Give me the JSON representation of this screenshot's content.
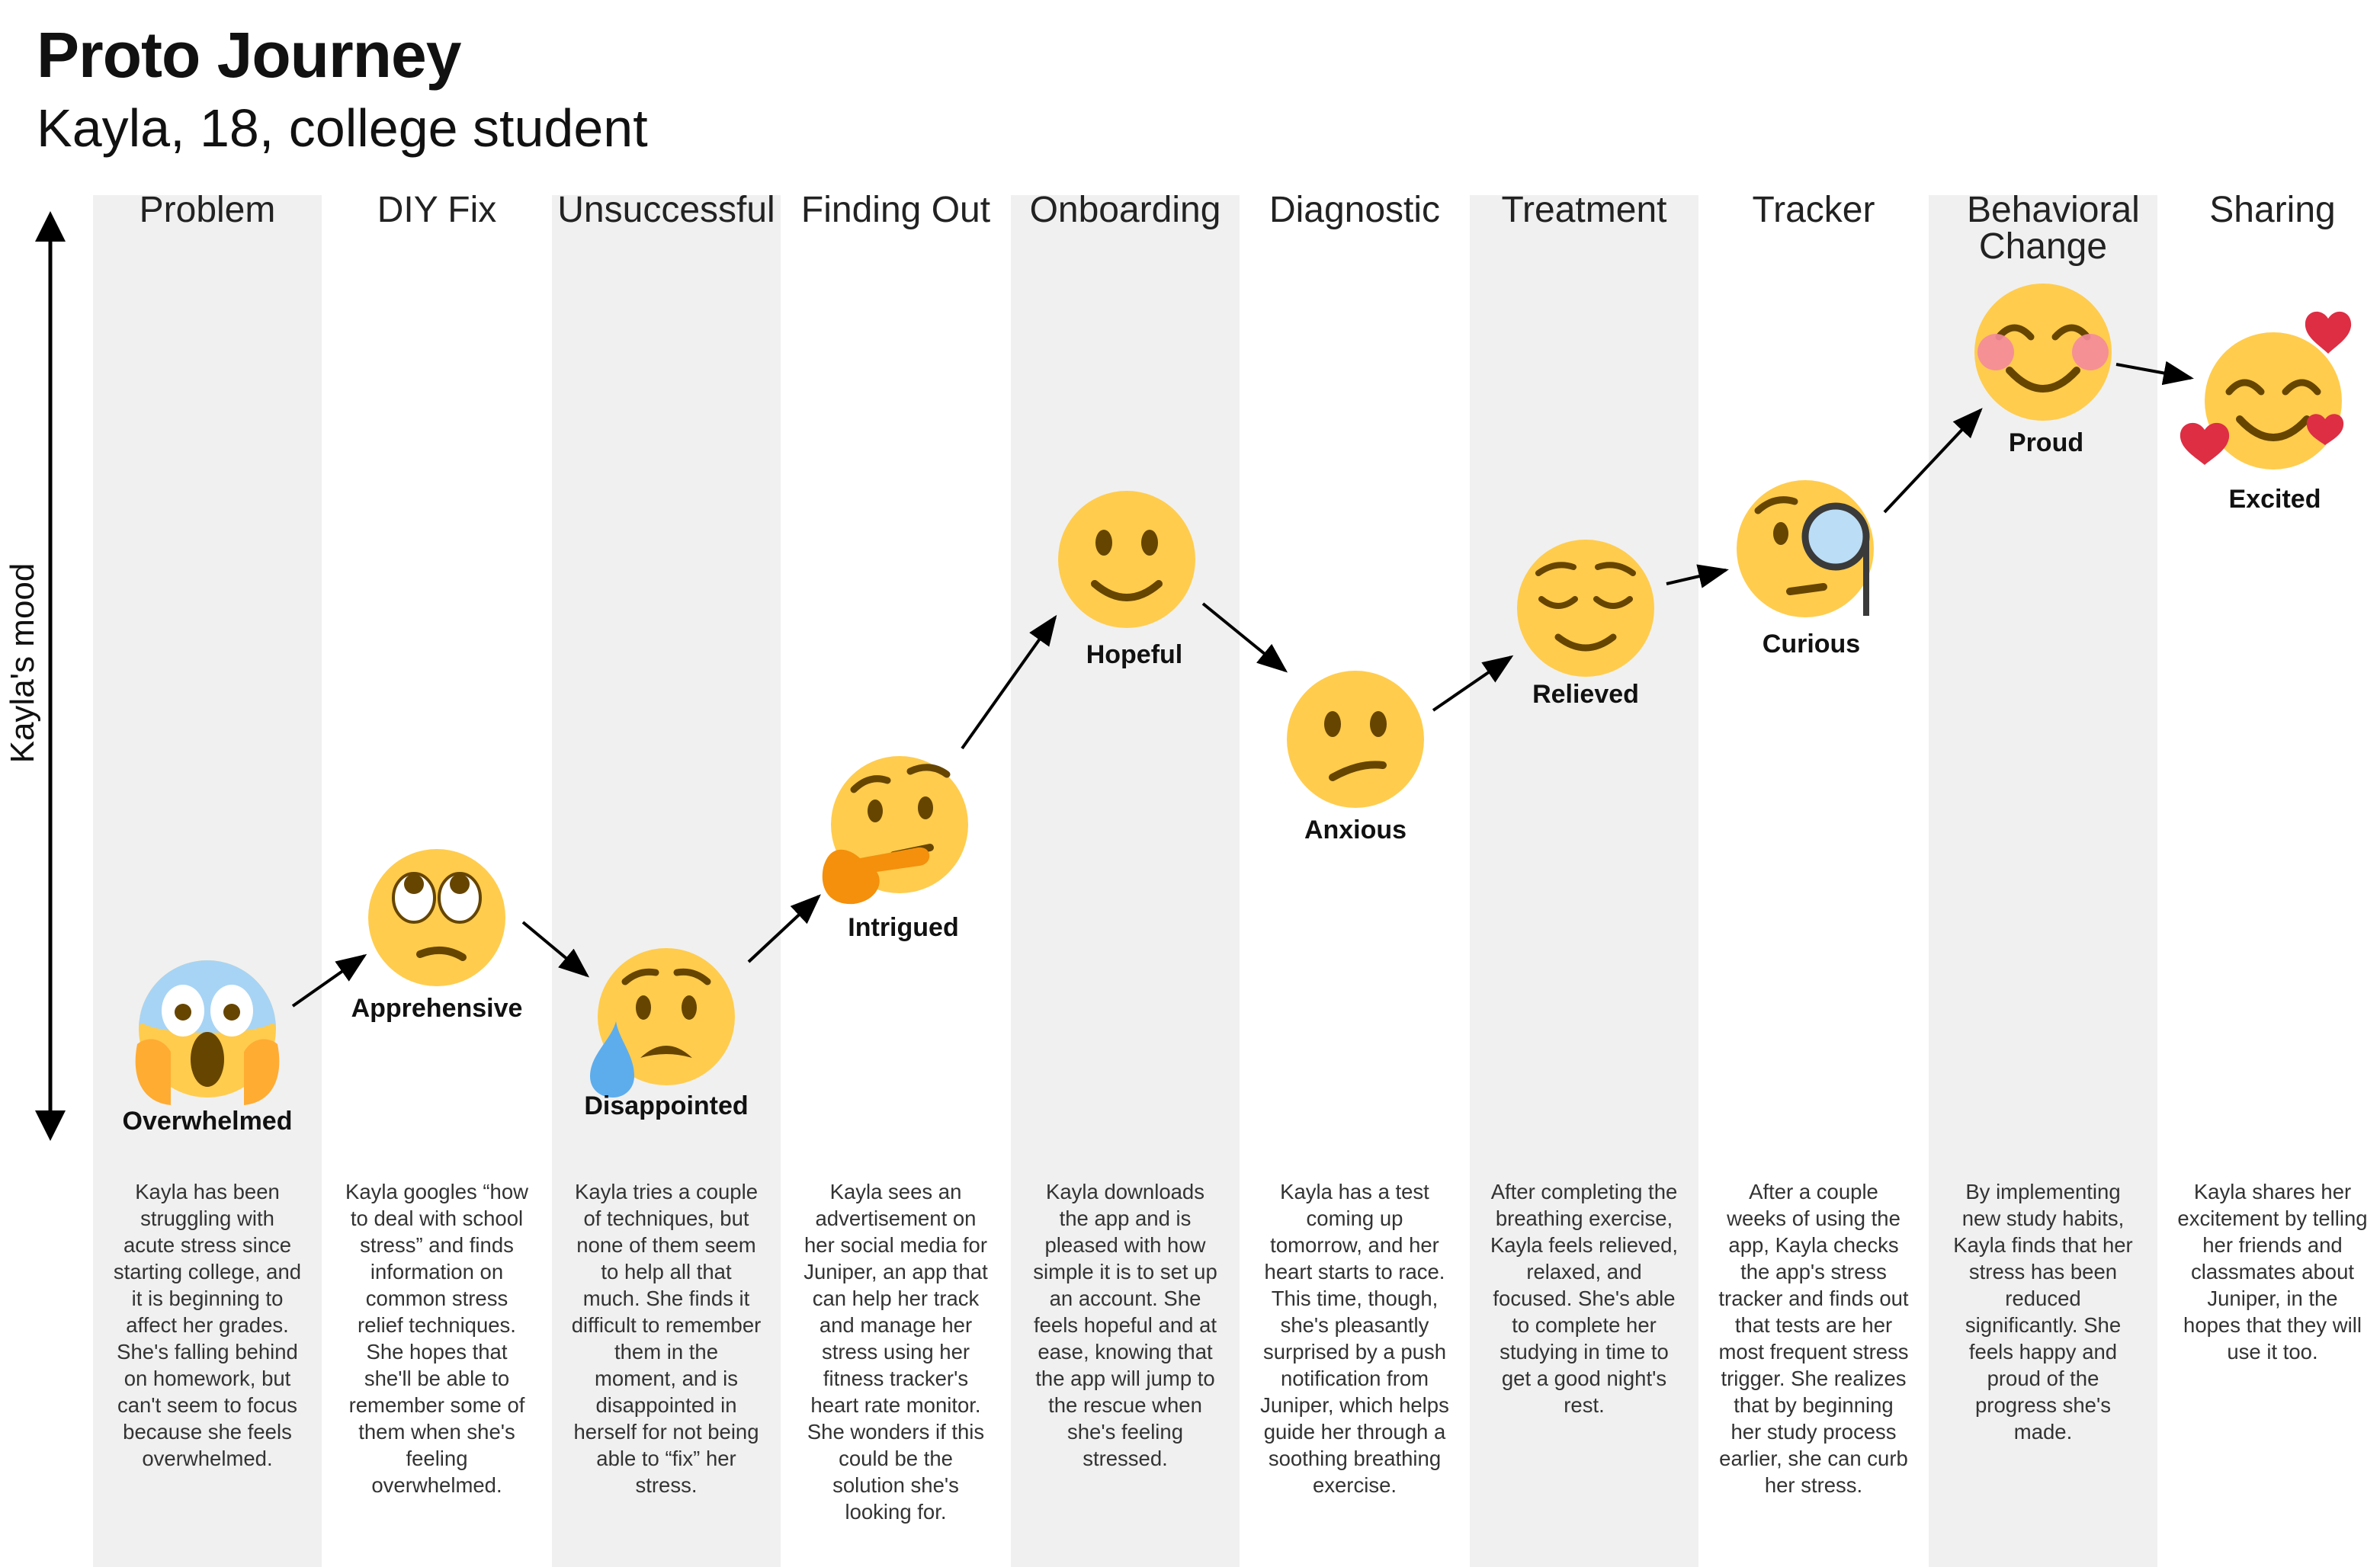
{
  "header": {
    "title": "Proto Journey",
    "subtitle": "Kayla, 18, college student"
  },
  "axis": {
    "label": "Kayla's mood"
  },
  "colors": {
    "column_shade": "#f0f0f0",
    "emoji_face": "#FFCC4D",
    "emoji_features": "#664500",
    "blush": "#F4899C",
    "tear": "#5DADEC",
    "heart": "#DD2E44",
    "hand": "#F4900C",
    "fear_blue": "#A7D4F5",
    "hands_orange": "#FFAC33",
    "arrow": "#000000"
  },
  "stages": [
    {
      "name": "Problem",
      "mood": "Overwhelmed",
      "icon": "screaming-in-fear-icon",
      "description": "Kayla has been struggling with acute stress since starting college, and it is beginning to affect her grades. She's falling behind on homework, but can't seem to focus because she feels overwhelmed."
    },
    {
      "name": "DIY Fix",
      "mood": "Apprehensive",
      "icon": "rolling-eyes-icon",
      "description": "Kayla googles “how to deal with school stress” and finds information on common stress relief techniques. She hopes that she'll be able to remember some of them when she's feeling overwhelmed."
    },
    {
      "name": "Unsuccessful",
      "mood": "Disappointed",
      "icon": "sad-sweat-icon",
      "description": "Kayla tries a couple of techniques, but none of them seem to help all that much. She finds it difficult to remember them in the moment, and is disappointed in herself for not being able to “fix” her stress."
    },
    {
      "name": "Finding Out",
      "mood": "Intrigued",
      "icon": "thinking-face-icon",
      "description": "Kayla sees an advertisement on her social media for Juniper, an app that can help her track and manage her stress using her fitness tracker's heart rate monitor. She wonders if this could be the solution she's looking for."
    },
    {
      "name": "Onboarding",
      "mood": "Hopeful",
      "icon": "slightly-smiling-icon",
      "description": "Kayla downloads the app and is pleased with how simple it is to set up an account. She feels hopeful and at ease, knowing that the app will jump to the rescue when she's feeling stressed."
    },
    {
      "name": "Diagnostic",
      "mood": "Anxious",
      "icon": "confused-face-icon",
      "description": "Kayla has a test coming up tomorrow, and her heart starts to race. This time, though, she's pleasantly surprised by a push notification from Juniper, which helps guide her through a soothing breathing exercise."
    },
    {
      "name": "Treatment",
      "mood": "Relieved",
      "icon": "relieved-face-icon",
      "description": "After completing the breathing exercise, Kayla feels relieved, relaxed, and focused. She's able to complete her studying in time to get a good night's rest."
    },
    {
      "name": "Tracker",
      "mood": "Curious",
      "icon": "monocle-face-icon",
      "description": "After a couple weeks of using the app, Kayla checks the app's stress tracker and finds out that tests are her most frequent stress trigger. She realizes that by beginning her study process earlier, she can curb her stress."
    },
    {
      "name": "Behavioral Change",
      "mood": "Proud",
      "icon": "smiling-blush-icon",
      "description": "By implementing new study habits, Kayla finds that her stress has been reduced significantly. She feels happy and proud of the progress she's made."
    },
    {
      "name": "Sharing",
      "mood": "Excited",
      "icon": "smiling-hearts-icon",
      "description": "Kayla shares her excitement by telling her friends and classmates about Juniper, in the hopes that they will use it too."
    }
  ]
}
